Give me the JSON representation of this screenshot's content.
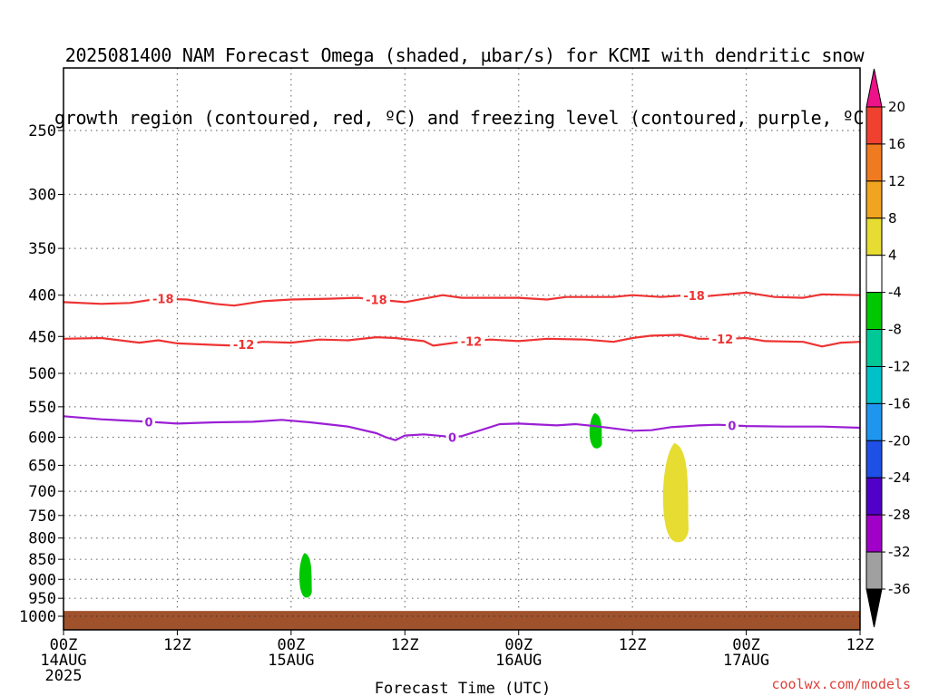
{
  "title": {
    "line1": "2025081400 NAM Forecast Omega (shaded, µbar/s) for KCMI with dendritic snow",
    "line2": "growth region (contoured, red, ºC) and freezing level (contoured, purple, ºC)"
  },
  "credit": "coolwx.com/models",
  "chart_data": {
    "type": "time-height cross section",
    "xlabel": "Forecast Time (UTC)",
    "x_ticks": [
      {
        "hour": 0,
        "lines": [
          "00Z",
          "14AUG",
          "2025"
        ]
      },
      {
        "hour": 12,
        "lines": [
          "12Z"
        ]
      },
      {
        "hour": 24,
        "lines": [
          "00Z",
          "15AUG"
        ]
      },
      {
        "hour": 36,
        "lines": [
          "12Z"
        ]
      },
      {
        "hour": 48,
        "lines": [
          "00Z",
          "16AUG"
        ]
      },
      {
        "hour": 60,
        "lines": [
          "12Z"
        ]
      },
      {
        "hour": 72,
        "lines": [
          "00Z",
          "17AUG"
        ]
      },
      {
        "hour": 84,
        "lines": [
          "12Z"
        ]
      }
    ],
    "xlim": [
      0,
      84
    ],
    "y_scale": "log-pressure (hPa), inverted",
    "y_ticks": [
      250,
      300,
      350,
      400,
      450,
      500,
      550,
      600,
      650,
      700,
      750,
      800,
      850,
      900,
      950,
      1000
    ],
    "ylim": [
      1030,
      200
    ],
    "grid": true,
    "contours": [
      {
        "label": "-18",
        "color": "#ee3333",
        "label_hours": [
          10.5,
          33,
          66.5
        ],
        "points": [
          [
            0,
            408
          ],
          [
            4,
            410
          ],
          [
            7,
            409
          ],
          [
            10,
            404
          ],
          [
            13,
            405
          ],
          [
            16,
            410
          ],
          [
            18,
            412
          ],
          [
            21,
            407
          ],
          [
            24,
            405
          ],
          [
            28,
            404
          ],
          [
            31,
            403
          ],
          [
            33,
            405
          ],
          [
            36,
            408
          ],
          [
            40,
            400
          ],
          [
            42,
            403
          ],
          [
            48,
            403
          ],
          [
            51,
            405
          ],
          [
            53,
            402
          ],
          [
            58,
            402
          ],
          [
            60,
            400
          ],
          [
            63,
            402
          ],
          [
            66,
            400
          ],
          [
            68,
            401
          ],
          [
            72,
            397
          ],
          [
            75,
            402
          ],
          [
            78,
            403
          ],
          [
            80,
            399
          ],
          [
            84,
            400
          ]
        ]
      },
      {
        "label": "-12",
        "color": "#ee3333",
        "label_hours": [
          19,
          43,
          69.5
        ],
        "points": [
          [
            0,
            453
          ],
          [
            4,
            452
          ],
          [
            8,
            458
          ],
          [
            10,
            455
          ],
          [
            12,
            459
          ],
          [
            16,
            461
          ],
          [
            18,
            462
          ],
          [
            21,
            457
          ],
          [
            24,
            458
          ],
          [
            27,
            454
          ],
          [
            30,
            455
          ],
          [
            33,
            451
          ],
          [
            35,
            452
          ],
          [
            38,
            456
          ],
          [
            39,
            462
          ],
          [
            42,
            457
          ],
          [
            45,
            454
          ],
          [
            48,
            456
          ],
          [
            51,
            453
          ],
          [
            55,
            454
          ],
          [
            58,
            457
          ],
          [
            60,
            452
          ],
          [
            62,
            449
          ],
          [
            65,
            448
          ],
          [
            67,
            453
          ],
          [
            70,
            453
          ],
          [
            72,
            452
          ],
          [
            74,
            456
          ],
          [
            78,
            457
          ],
          [
            80,
            463
          ],
          [
            82,
            458
          ],
          [
            84,
            457
          ]
        ]
      },
      {
        "label": "0",
        "color": "#9b1fd4",
        "label_hours": [
          9,
          41,
          70.5
        ],
        "points": [
          [
            0,
            565
          ],
          [
            4,
            570
          ],
          [
            9,
            574
          ],
          [
            12,
            577
          ],
          [
            16,
            575
          ],
          [
            20,
            574
          ],
          [
            23,
            571
          ],
          [
            26,
            575
          ],
          [
            30,
            582
          ],
          [
            33,
            593
          ],
          [
            34,
            600
          ],
          [
            35,
            605
          ],
          [
            36,
            597
          ],
          [
            38,
            595
          ],
          [
            40,
            598
          ],
          [
            41,
            600
          ],
          [
            42,
            598
          ],
          [
            44,
            588
          ],
          [
            46,
            578
          ],
          [
            48,
            577
          ],
          [
            52,
            580
          ],
          [
            54,
            578
          ],
          [
            56,
            581
          ],
          [
            58,
            585
          ],
          [
            60,
            589
          ],
          [
            62,
            588
          ],
          [
            64,
            583
          ],
          [
            67,
            580
          ],
          [
            69,
            579
          ],
          [
            72,
            581
          ],
          [
            76,
            582
          ],
          [
            80,
            582
          ],
          [
            84,
            584
          ]
        ]
      }
    ],
    "shaded_regions": [
      {
        "color": "#00c800",
        "category": "-8 to -4",
        "hour": 25.5,
        "p_top": 835,
        "p_bottom": 950
      },
      {
        "color": "#00c800",
        "category": "-8 to -4",
        "hour": 56.1,
        "p_top": 560,
        "p_bottom": 620
      },
      {
        "color": "#e6dc32",
        "category": "4 to 8",
        "hour": 64.5,
        "p_top": 610,
        "p_bottom": 815
      }
    ],
    "ground": {
      "color": "#a0522d",
      "p_top": 985
    },
    "colorbar": {
      "labels": [
        "20",
        "16",
        "12",
        "8",
        "4",
        "-4",
        "-8",
        "-12",
        "-16",
        "-20",
        "-24",
        "-28",
        "-32",
        "-36"
      ],
      "colors": {
        "above_20": "#ee1188",
        "16_20": "#f04030",
        "12_16": "#f07a20",
        "8_12": "#f0a420",
        "4_8": "#e6dc32",
        "-4_4": "#ffffff",
        "-8_-4": "#00c800",
        "-12_-8": "#00c896",
        "-16_-12": "#00c0c8",
        "-20_-16": "#1e96f0",
        "-24_-20": "#1e50e6",
        "-28_-24": "#5000c8",
        "-32_-28": "#a000c8",
        "-36_-32": "#a0a0a0",
        "below_-36": "#000000"
      }
    }
  }
}
